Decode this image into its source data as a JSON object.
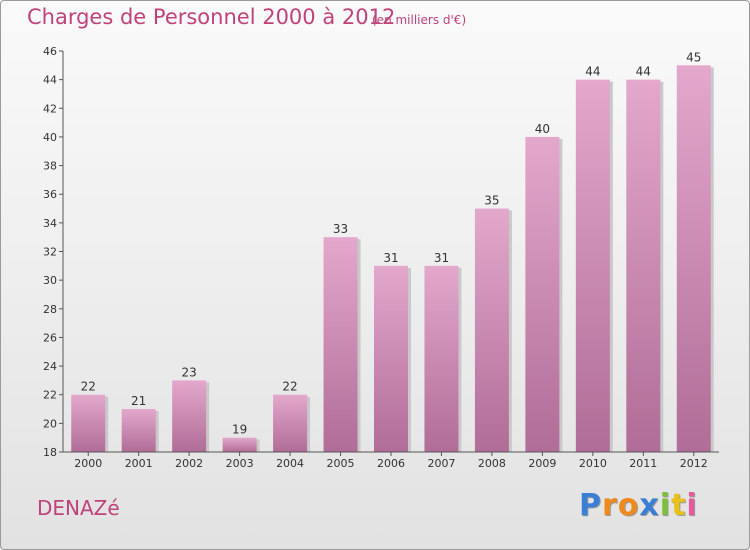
{
  "chart_data": {
    "type": "bar",
    "title": "Charges de Personnel 2000 à 2012",
    "subtitle": "(en milliers d'€)",
    "xlabel": "",
    "ylabel": "",
    "categories": [
      "2000",
      "2001",
      "2002",
      "2003",
      "2004",
      "2005",
      "2006",
      "2007",
      "2008",
      "2009",
      "2010",
      "2011",
      "2012"
    ],
    "values": [
      22,
      21,
      23,
      19,
      22,
      33,
      31,
      31,
      35,
      40,
      44,
      44,
      45
    ],
    "ylim": [
      18,
      46
    ],
    "yticks": [
      18,
      20,
      22,
      24,
      26,
      28,
      30,
      32,
      34,
      36,
      38,
      40,
      42,
      44,
      46
    ],
    "grid": false,
    "legend": "none"
  },
  "footer": {
    "commune": "DENAZé",
    "logo_letters": [
      "P",
      "r",
      "o",
      "x",
      "i",
      "t",
      "i"
    ],
    "logo_colors": [
      "#3a7fd5",
      "#ef8a1e",
      "#ef8a1e",
      "#3a7fd5",
      "#7cbf3a",
      "#e8c21a",
      "#e45a9a"
    ]
  },
  "colors": {
    "bar_top": "#e3a8cc",
    "bar_bottom": "#b06d97",
    "accent": "#c0427a"
  }
}
